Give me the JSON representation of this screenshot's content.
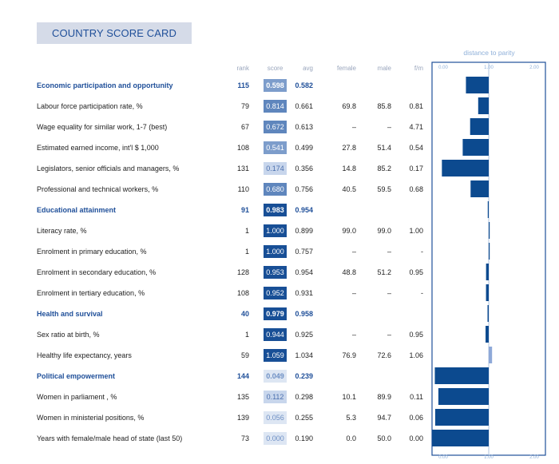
{
  "title": "COUNTRY SCORE CARD",
  "headers": {
    "rank": "rank",
    "score": "score",
    "avg": "avg",
    "female": "female",
    "male": "male",
    "fm": "f/m",
    "distance": "distance to parity"
  },
  "colors": {
    "title_bg": "#d5dbe8",
    "section_text": "#1f4f99",
    "bar": "#0c4a8f",
    "bar_light": "#8ea9d8",
    "axis_text": "#8fb0d9",
    "frame": "#1f4f99"
  },
  "chart_data": {
    "type": "bar",
    "orientation": "horizontal",
    "title": "distance to parity",
    "xlim": [
      0,
      2
    ],
    "x_ticks": [
      "0.00",
      "1.00",
      "2.00"
    ],
    "reference_line": 1.0,
    "categories": [
      "Economic participation and opportunity",
      "Labour force participation rate, %",
      "Wage equality for similar work, 1-7 (best)",
      "Estimated earned income, int'l $ 1,000",
      "Legislators, senior officials and managers, %",
      "Professional and technical workers, %",
      "Educational attainment",
      "Literacy rate, %",
      "Enrolment in primary education, %",
      "Enrolment in secondary education, %",
      "Enrolment in tertiary education, %",
      "Health and survival",
      "Sex ratio at birth, %",
      "Healthy life expectancy, years",
      "Political empowerment",
      "Women in parliament , %",
      "Women in ministerial positions, %",
      "Years with female/male head of state (last 50)"
    ],
    "values": [
      0.598,
      0.814,
      0.672,
      0.541,
      0.174,
      0.68,
      0.983,
      1.0,
      1.0,
      0.953,
      0.952,
      0.979,
      0.944,
      1.059,
      0.049,
      0.112,
      0.056,
      0.0
    ]
  },
  "rows": [
    {
      "type": "section",
      "label": "Economic participation and opportunity",
      "rank": "115",
      "score": "0.598",
      "avg": "0.582",
      "female": "",
      "male": "",
      "fm": ""
    },
    {
      "type": "indicator",
      "label": "Labour force participation rate, %",
      "rank": "79",
      "score": "0.814",
      "avg": "0.661",
      "female": "69.8",
      "male": "85.8",
      "fm": "0.81"
    },
    {
      "type": "indicator",
      "label": "Wage equality for similar work, 1-7 (best)",
      "rank": "67",
      "score": "0.672",
      "avg": "0.613",
      "female": "–",
      "male": "–",
      "fm": "4.71"
    },
    {
      "type": "indicator",
      "label": "Estimated earned income, int'l $ 1,000",
      "rank": "108",
      "score": "0.541",
      "avg": "0.499",
      "female": "27.8",
      "male": "51.4",
      "fm": "0.54"
    },
    {
      "type": "indicator",
      "label": "Legislators, senior officials and managers, %",
      "rank": "131",
      "score": "0.174",
      "avg": "0.356",
      "female": "14.8",
      "male": "85.2",
      "fm": "0.17"
    },
    {
      "type": "indicator",
      "label": "Professional and technical workers, %",
      "rank": "110",
      "score": "0.680",
      "avg": "0.756",
      "female": "40.5",
      "male": "59.5",
      "fm": "0.68"
    },
    {
      "type": "section",
      "label": "Educational attainment",
      "rank": "91",
      "score": "0.983",
      "avg": "0.954",
      "female": "",
      "male": "",
      "fm": ""
    },
    {
      "type": "indicator",
      "label": "Literacy rate, %",
      "rank": "1",
      "score": "1.000",
      "avg": "0.899",
      "female": "99.0",
      "male": "99.0",
      "fm": "1.00"
    },
    {
      "type": "indicator",
      "label": "Enrolment in primary education, %",
      "rank": "1",
      "score": "1.000",
      "avg": "0.757",
      "female": "–",
      "male": "–",
      "fm": "-"
    },
    {
      "type": "indicator",
      "label": "Enrolment in secondary education, %",
      "rank": "128",
      "score": "0.953",
      "avg": "0.954",
      "female": "48.8",
      "male": "51.2",
      "fm": "0.95"
    },
    {
      "type": "indicator",
      "label": "Enrolment in tertiary education, %",
      "rank": "108",
      "score": "0.952",
      "avg": "0.931",
      "female": "–",
      "male": "–",
      "fm": "-"
    },
    {
      "type": "section",
      "label": "Health and survival",
      "rank": "40",
      "score": "0.979",
      "avg": "0.958",
      "female": "",
      "male": "",
      "fm": ""
    },
    {
      "type": "indicator",
      "label": "Sex ratio at birth, %",
      "rank": "1",
      "score": "0.944",
      "avg": "0.925",
      "female": "–",
      "male": "–",
      "fm": "0.95"
    },
    {
      "type": "indicator",
      "label": "Healthy life expectancy, years",
      "rank": "59",
      "score": "1.059",
      "avg": "1.034",
      "female": "76.9",
      "male": "72.6",
      "fm": "1.06"
    },
    {
      "type": "section",
      "label": "Political empowerment",
      "rank": "144",
      "score": "0.049",
      "avg": "0.239",
      "female": "",
      "male": "",
      "fm": ""
    },
    {
      "type": "indicator",
      "label": "Women in parliament , %",
      "rank": "135",
      "score": "0.112",
      "avg": "0.298",
      "female": "10.1",
      "male": "89.9",
      "fm": "0.11"
    },
    {
      "type": "indicator",
      "label": "Women in ministerial positions, %",
      "rank": "139",
      "score": "0.056",
      "avg": "0.255",
      "female": "5.3",
      "male": "94.7",
      "fm": "0.06"
    },
    {
      "type": "indicator",
      "label": "Years with female/male head of state (last 50)",
      "rank": "73",
      "score": "0.000",
      "avg": "0.190",
      "female": "0.0",
      "male": "50.0",
      "fm": "0.00"
    }
  ]
}
